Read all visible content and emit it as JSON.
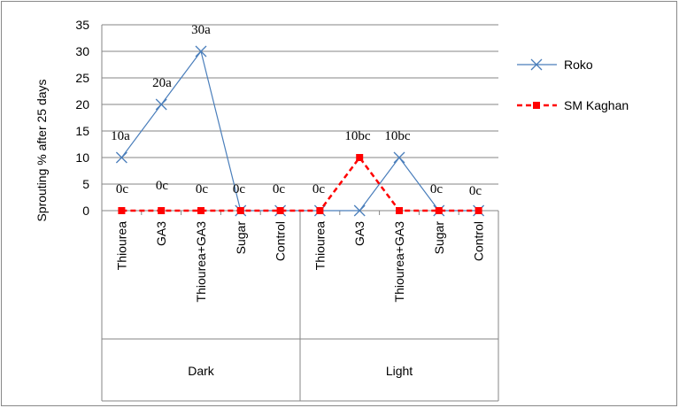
{
  "chart_data": {
    "type": "line",
    "ylabel": "Sprouting % after 25 days",
    "ylim": [
      0,
      35
    ],
    "ytick_step": 5,
    "yticks": [
      "0",
      "5",
      "10",
      "15",
      "20",
      "25",
      "30",
      "35"
    ],
    "grid": "horizontal",
    "legend_position": "right",
    "categories": [
      "Thiourea",
      "GA3",
      "Thiourea+GA3",
      "Sugar",
      "Control",
      "Thiourea",
      "GA3",
      "Thiourea+GA3",
      "Sugar",
      "Control"
    ],
    "groups": [
      {
        "label": "Dark",
        "start": 0,
        "end": 5
      },
      {
        "label": "Light",
        "start": 5,
        "end": 10
      }
    ],
    "series": [
      {
        "name": "Roko",
        "color": "#4a7ebb",
        "marker": "x",
        "dashed": false,
        "values": [
          10,
          20,
          30,
          0,
          0,
          0,
          0,
          10,
          0,
          0
        ]
      },
      {
        "name": "SM Kaghan",
        "color": "#ff0000",
        "marker": "square",
        "dashed": true,
        "values": [
          0,
          0,
          0,
          0,
          0,
          0,
          10,
          0,
          0,
          0
        ]
      }
    ],
    "data_labels": [
      "10a",
      "20a",
      "30a",
      "0c",
      "0c",
      "0c",
      "10bc",
      "10bc",
      "0c",
      "0c"
    ],
    "data_labels_zero_row": [
      "0c",
      "0c",
      "0c"
    ]
  }
}
